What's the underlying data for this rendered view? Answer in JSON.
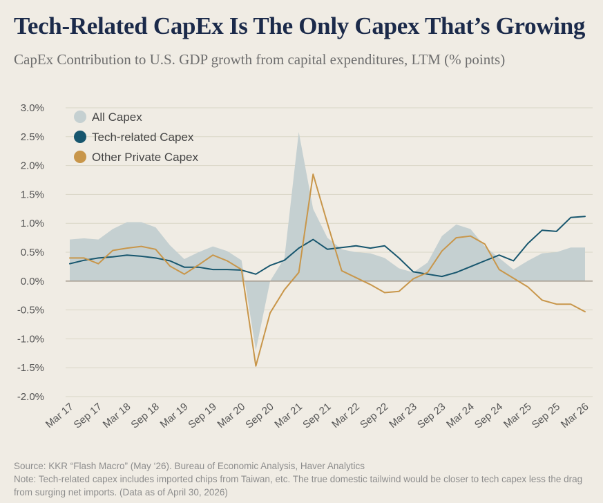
{
  "header": {
    "title": "Tech-Related CapEx Is The Only Capex That’s Growing",
    "subtitle": "CapEx Contribution to U.S. GDP growth from capital expenditures, LTM (% points)"
  },
  "footer": {
    "source": "Source: KKR “Flash Macro” (May ‘26). Bureau of Economic Analysis, Haver Analytics",
    "note": "Note: Tech-related capex includes imported chips from Taiwan, etc. The true domestic tailwind would be closer to tech capex less the drag from surging net imports. (Data as of April 30, 2026)"
  },
  "colors": {
    "all_capex": "#C5D0D1",
    "tech": "#17566E",
    "other": "#C8964A",
    "grid": "#D9D6C6",
    "zero_line": "#A89E92",
    "text": "#555555"
  },
  "chart_data": {
    "type": "line",
    "title": "",
    "xlabel": "",
    "ylabel": "",
    "ylim": [
      -2.0,
      3.0
    ],
    "yticks": [
      "-2.0%",
      "-1.5%",
      "-1.0%",
      "-0.5%",
      "0.0%",
      "0.5%",
      "1.0%",
      "1.5%",
      "2.0%",
      "2.5%",
      "3.0%"
    ],
    "yticks_values": [
      -2.0,
      -1.5,
      -1.0,
      -0.5,
      0.0,
      0.5,
      1.0,
      1.5,
      2.0,
      2.5,
      3.0
    ],
    "categories": [
      "Mar 17",
      "Jun 17",
      "Sep 17",
      "Dec 17",
      "Mar 18",
      "Jun 18",
      "Sep 18",
      "Dec 18",
      "Mar 19",
      "Jun 19",
      "Sep 19",
      "Dec 19",
      "Mar 20",
      "Jun 20",
      "Sep 20",
      "Dec 20",
      "Mar 21",
      "Jun 21",
      "Sep 21",
      "Dec 21",
      "Mar 22",
      "Jun 22",
      "Sep 22",
      "Dec 22",
      "Mar 23",
      "Jun 23",
      "Sep 23",
      "Dec 23",
      "Mar 24",
      "Jun 24",
      "Sep 24",
      "Dec 24",
      "Mar 25",
      "Jun 25",
      "Sep 25",
      "Dec 25",
      "Mar 26"
    ],
    "xtick_labels": [
      "Mar 17",
      "Sep 17",
      "Mar 18",
      "Sep 18",
      "Mar 19",
      "Sep 19",
      "Mar 20",
      "Sep 20",
      "Mar 21",
      "Sep 21",
      "Mar 22",
      "Sep 22",
      "Mar 23",
      "Sep 23",
      "Mar 24",
      "Sep 24",
      "Mar 25",
      "Sep 25",
      "Mar 26"
    ],
    "legend_position": "top-left",
    "grid": true,
    "series": [
      {
        "name": "All Capex",
        "style": "area",
        "values": [
          0.72,
          0.74,
          0.72,
          0.9,
          1.02,
          1.02,
          0.93,
          0.62,
          0.38,
          0.5,
          0.6,
          0.52,
          0.36,
          -1.2,
          0.0,
          0.4,
          2.58,
          1.25,
          0.75,
          0.55,
          0.5,
          0.48,
          0.4,
          0.22,
          0.15,
          0.32,
          0.78,
          0.98,
          0.9,
          0.6,
          0.4,
          0.2,
          0.35,
          0.48,
          0.5,
          0.58,
          0.58
        ]
      },
      {
        "name": "Tech-related Capex",
        "style": "line",
        "values": [
          0.3,
          0.36,
          0.4,
          0.42,
          0.45,
          0.43,
          0.4,
          0.35,
          0.24,
          0.24,
          0.2,
          0.2,
          0.19,
          0.12,
          0.27,
          0.36,
          0.57,
          0.72,
          0.55,
          0.58,
          0.61,
          0.57,
          0.61,
          0.4,
          0.16,
          0.12,
          0.08,
          0.15,
          0.25,
          0.35,
          0.45,
          0.35,
          0.65,
          0.88,
          0.86,
          1.1,
          1.12
        ]
      },
      {
        "name": "Other Private Capex",
        "style": "line",
        "values": [
          0.4,
          0.4,
          0.3,
          0.53,
          0.57,
          0.6,
          0.55,
          0.26,
          0.12,
          0.28,
          0.45,
          0.35,
          0.2,
          -1.47,
          -0.55,
          -0.15,
          0.15,
          1.85,
          1.0,
          0.18,
          0.06,
          -0.06,
          -0.2,
          -0.18,
          0.04,
          0.15,
          0.52,
          0.75,
          0.78,
          0.64,
          0.2,
          0.05,
          -0.1,
          -0.33,
          -0.4,
          -0.4,
          -0.53
        ]
      }
    ]
  }
}
